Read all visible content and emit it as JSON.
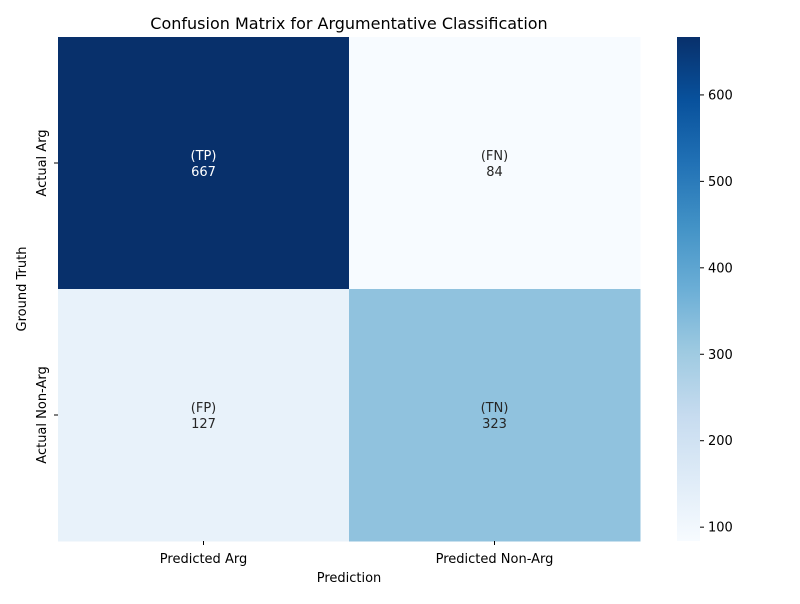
{
  "chart_data": {
    "type": "heatmap",
    "title": "Confusion Matrix for Argumentative Classification",
    "xlabel": "Prediction",
    "ylabel": "Ground Truth",
    "x_categories": [
      "Predicted Arg",
      "Predicted Non-Arg"
    ],
    "y_categories": [
      "Actual Arg",
      "Actual Non-Arg"
    ],
    "cells": [
      [
        {
          "tag": "(TP)",
          "value": 667
        },
        {
          "tag": "(FN)",
          "value": 84
        }
      ],
      [
        {
          "tag": "(FP)",
          "value": 127
        },
        {
          "tag": "(TN)",
          "value": 323
        }
      ]
    ],
    "colormap": "Blues",
    "vmin": 84,
    "vmax": 667,
    "colorbar_ticks": [
      100,
      200,
      300,
      400,
      500,
      600
    ]
  }
}
